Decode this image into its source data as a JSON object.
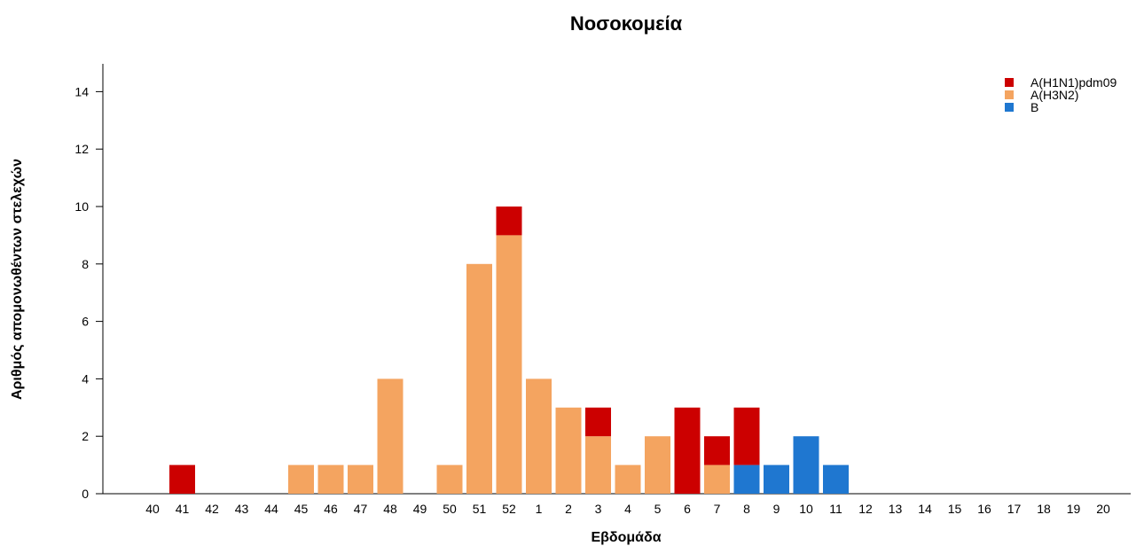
{
  "chart_data": {
    "type": "bar",
    "stacked": true,
    "title": "Νοσοκομεία",
    "xlabel": "Εβδομάδα",
    "ylabel": "Αριθμός απομονωθέντων στελεχών",
    "ylim": [
      0,
      15
    ],
    "yticks": [
      0,
      2,
      4,
      6,
      8,
      10,
      12,
      14
    ],
    "grid": false,
    "legend_position": "top-right",
    "categories": [
      "40",
      "41",
      "42",
      "43",
      "44",
      "45",
      "46",
      "47",
      "48",
      "49",
      "50",
      "51",
      "52",
      "1",
      "2",
      "3",
      "4",
      "5",
      "6",
      "7",
      "8",
      "9",
      "10",
      "11",
      "12",
      "13",
      "14",
      "15",
      "16",
      "17",
      "18",
      "19",
      "20"
    ],
    "series": [
      {
        "name": "B",
        "color": "#1f77d0",
        "values": [
          0,
          0,
          0,
          0,
          0,
          0,
          0,
          0,
          0,
          0,
          0,
          0,
          0,
          0,
          0,
          0,
          0,
          0,
          0,
          0,
          1,
          1,
          2,
          1,
          0,
          0,
          0,
          0,
          0,
          0,
          0,
          0,
          0
        ]
      },
      {
        "name": "A(H3N2)",
        "color": "#f4a460",
        "values": [
          0,
          0,
          0,
          0,
          0,
          1,
          1,
          1,
          4,
          0,
          1,
          8,
          9,
          4,
          3,
          2,
          1,
          2,
          0,
          1,
          0,
          0,
          0,
          0,
          0,
          0,
          0,
          0,
          0,
          0,
          0,
          0,
          0
        ]
      },
      {
        "name": "A(H1N1)pdm09",
        "color": "#cc0000",
        "values": [
          0,
          1,
          0,
          0,
          0,
          0,
          0,
          0,
          0,
          0,
          0,
          0,
          1,
          0,
          0,
          1,
          0,
          0,
          3,
          1,
          2,
          0,
          0,
          0,
          0,
          0,
          0,
          0,
          0,
          0,
          0,
          0,
          0
        ]
      }
    ],
    "legend_order": [
      "A(H1N1)pdm09",
      "A(H3N2)",
      "B"
    ]
  }
}
